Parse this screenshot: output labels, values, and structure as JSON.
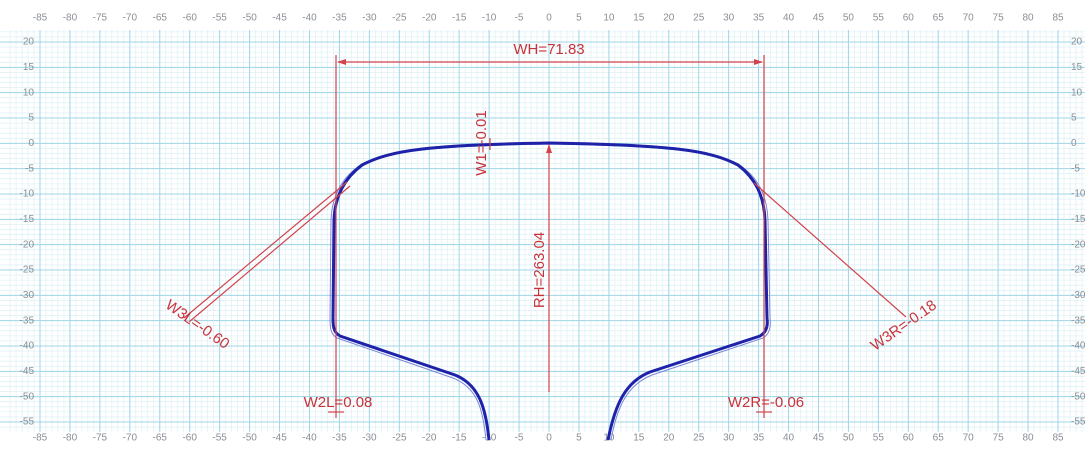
{
  "axes": {
    "xticks": [
      -85,
      -80,
      -75,
      -70,
      -65,
      -60,
      -55,
      -50,
      -45,
      -40,
      -35,
      -30,
      -25,
      -20,
      -15,
      -10,
      -5,
      0,
      5,
      10,
      15,
      20,
      25,
      30,
      35,
      40,
      45,
      50,
      55,
      60,
      65,
      70,
      75,
      80,
      85
    ],
    "yticks": [
      20,
      15,
      10,
      5,
      0,
      -5,
      -10,
      -15,
      -20,
      -25,
      -30,
      -35,
      -40,
      -45,
      -50,
      -55
    ]
  },
  "annotations": {
    "wh": "WH=71.83",
    "rh": "RH=263.04",
    "w1": "W1=-0.01",
    "w3l": "W3L=-0.60",
    "w3r": "W3R=-0.18",
    "w2l": "W2L=0.08",
    "w2r": "W2R=-0.06"
  }
}
